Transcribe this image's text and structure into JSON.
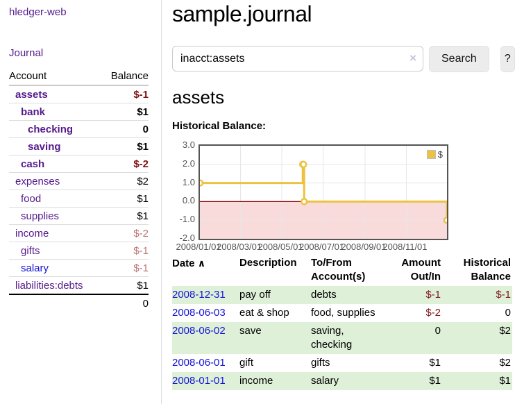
{
  "app": {
    "brand": "hledger-web",
    "nav_journal": "Journal"
  },
  "sidebar": {
    "header": {
      "account": "Account",
      "balance": "Balance"
    },
    "accounts": [
      {
        "name": "assets",
        "balance": "$-1"
      },
      {
        "name": "bank",
        "balance": "$1"
      },
      {
        "name": "checking",
        "balance": "0"
      },
      {
        "name": "saving",
        "balance": "$1"
      },
      {
        "name": "cash",
        "balance": "$-2"
      },
      {
        "name": "expenses",
        "balance": "$2"
      },
      {
        "name": "food",
        "balance": "$1"
      },
      {
        "name": "supplies",
        "balance": "$1"
      },
      {
        "name": "income",
        "balance": "$-2"
      },
      {
        "name": "gifts",
        "balance": "$-1"
      },
      {
        "name": "salary",
        "balance": "$-1"
      },
      {
        "name": "liabilities:debts",
        "balance": "$1"
      }
    ],
    "total": "0"
  },
  "main": {
    "title": "sample.journal",
    "search": {
      "value": "inacct:assets",
      "clear_icon": "×",
      "button_label": "Search",
      "help_label": "?"
    },
    "account_heading": "assets",
    "chart_label": "Historical Balance:"
  },
  "chart_data": {
    "type": "line",
    "step": true,
    "title": "Historical Balance",
    "series": [
      {
        "name": "$",
        "color": "#edc240",
        "points": [
          [
            "2008-01-01",
            1
          ],
          [
            "2008-06-01",
            2
          ],
          [
            "2008-06-02",
            2
          ],
          [
            "2008-06-03",
            0
          ],
          [
            "2008-12-31",
            -1
          ]
        ]
      }
    ],
    "xlim": [
      "2008-01-01",
      "2008-12-31"
    ],
    "ylim": [
      -2,
      3
    ],
    "x_ticks": [
      "2008/01/01",
      "2008/03/01",
      "2008/05/01",
      "2008/07/01",
      "2008/09/01",
      "2008/11/01"
    ],
    "x_tick_dates": [
      "2008-01-01",
      "2008-03-01",
      "2008-05-01",
      "2008-07-01",
      "2008-09-01",
      "2008-11-01"
    ],
    "y_ticks": [
      3,
      2,
      1,
      0,
      -1,
      -2
    ],
    "y_tick_labels": [
      "3.0",
      "2.0",
      "1.0",
      "0.0",
      "-1.0",
      "-2.0"
    ],
    "legend": {
      "label": "$",
      "position": "top-right"
    },
    "grid": true,
    "grid_color": "#e7e7e7",
    "zero_line_color": "#8b0000",
    "negative_fill": "#f9dbdb"
  },
  "register": {
    "headers": {
      "date": "Date",
      "sort_icon": "∧",
      "description": "Description",
      "tofrom": "To/From Account(s)",
      "amount": "Amount Out/In",
      "balance": "Historical Balance"
    },
    "rows": [
      {
        "date": "2008-12-31",
        "description": "pay off",
        "accounts": "debts",
        "amount": "$-1",
        "balance": "$-1"
      },
      {
        "date": "2008-06-03",
        "description": "eat & shop",
        "accounts": "food, supplies",
        "amount": "$-2",
        "balance": "0"
      },
      {
        "date": "2008-06-02",
        "description": "save",
        "accounts": "saving, checking",
        "amount": "0",
        "balance": "$2"
      },
      {
        "date": "2008-06-01",
        "description": "gift",
        "accounts": "gifts",
        "amount": "$1",
        "balance": "$2"
      },
      {
        "date": "2008-01-01",
        "description": "income",
        "accounts": "salary",
        "amount": "$1",
        "balance": "$1"
      }
    ]
  }
}
